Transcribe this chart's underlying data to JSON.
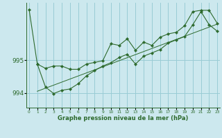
{
  "xlabel": "Graphe pression niveau de la mer (hPa)",
  "background_color": "#cce8ee",
  "grid_color": "#99ccd5",
  "line_color": "#2d6a2d",
  "marker_color": "#2d6a2d",
  "tick_label_color": "#2d6a2d",
  "ylabel_ticks": [
    994,
    995
  ],
  "xlim": [
    -0.3,
    23.3
  ],
  "ylim": [
    993.55,
    996.75
  ],
  "trend_line": {
    "x": [
      1,
      23
    ],
    "y": [
      994.05,
      996.1
    ]
  },
  "series1": {
    "x": [
      0,
      1,
      2,
      3,
      4,
      5,
      6,
      7,
      8,
      9,
      10,
      11,
      12,
      13,
      14,
      15,
      16,
      17,
      18,
      19,
      20,
      21,
      22,
      23
    ],
    "y": [
      996.55,
      994.88,
      994.75,
      994.82,
      994.82,
      994.72,
      994.72,
      994.88,
      994.93,
      994.98,
      995.5,
      995.45,
      995.65,
      995.3,
      995.55,
      995.45,
      995.7,
      995.8,
      995.85,
      996.05,
      996.48,
      996.52,
      996.52,
      996.12
    ]
  },
  "series2": {
    "x": [
      1,
      2,
      3,
      4,
      5,
      6,
      7,
      8,
      9,
      10,
      11,
      12,
      13,
      14,
      15,
      16,
      17,
      18,
      19,
      20,
      21,
      22,
      23
    ],
    "y": [
      994.88,
      994.18,
      993.98,
      994.08,
      994.12,
      994.28,
      994.52,
      994.68,
      994.82,
      994.92,
      995.08,
      995.18,
      994.88,
      995.12,
      995.22,
      995.32,
      995.52,
      995.62,
      995.72,
      996.08,
      996.48,
      996.08,
      995.88
    ]
  },
  "xtick_labels": [
    "0",
    "1",
    "2",
    "3",
    "4",
    "5",
    "6",
    "7",
    "8",
    "9",
    "10",
    "11",
    "12",
    "13",
    "14",
    "15",
    "16",
    "17",
    "18",
    "19",
    "20",
    "21",
    "22",
    "23"
  ]
}
